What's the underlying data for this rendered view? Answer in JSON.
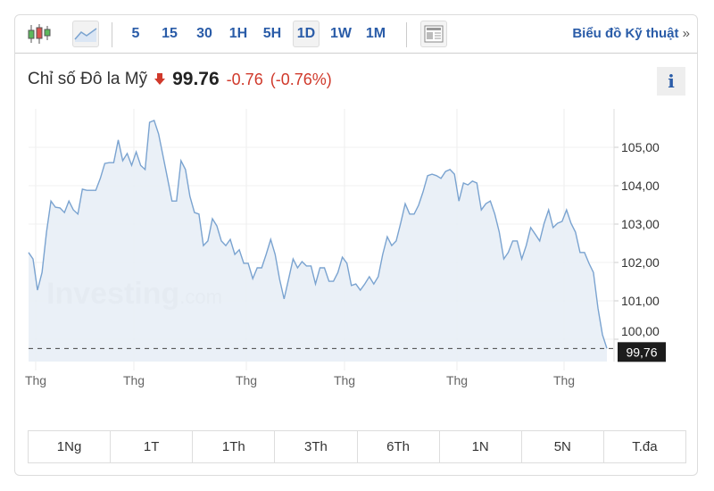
{
  "toolbar": {
    "icons": [
      "candlestick-chart-icon",
      "area-chart-icon",
      "layout-icon"
    ],
    "intervals": [
      "5",
      "15",
      "30",
      "1H",
      "5H",
      "1D",
      "1W",
      "1M"
    ],
    "active_interval": "1D",
    "tech_link": "Biểu đồ Kỹ thuật",
    "tech_link_arrow": "»"
  },
  "header": {
    "name": "Chỉ số Đô la Mỹ",
    "price": "99.76",
    "change": "-0.76",
    "change_pct": "(-0.76%)",
    "info_label": "i",
    "down_color": "#d0392b"
  },
  "watermark": {
    "brand": "Investing",
    "suffix": ".com"
  },
  "chart_data": {
    "type": "area",
    "ylim": [
      99.6,
      105.9
    ],
    "yticks": [
      "105,00",
      "104,00",
      "103,00",
      "102,00",
      "101,00",
      "100,00"
    ],
    "ytick_values": [
      105,
      104,
      103,
      102,
      101,
      100
    ],
    "xticks": [
      "Thg",
      "Thg",
      "Thg",
      "Thg",
      "Thg",
      "Thg"
    ],
    "last_value_label": "99,76",
    "last_value": 99.76,
    "line_color": "#7aa3d0",
    "fill_color": "#e8eef6",
    "grid": true,
    "values": [
      102.26,
      102.09,
      101.28,
      101.74,
      102.79,
      103.6,
      103.44,
      103.42,
      103.3,
      103.6,
      103.37,
      103.26,
      103.91,
      103.88,
      103.88,
      103.88,
      104.19,
      104.58,
      104.6,
      104.6,
      105.19,
      104.65,
      104.84,
      104.53,
      104.88,
      104.53,
      104.42,
      105.65,
      105.7,
      105.35,
      104.77,
      104.19,
      103.6,
      103.6,
      104.65,
      104.42,
      103.72,
      103.3,
      103.26,
      102.44,
      102.56,
      103.14,
      102.95,
      102.56,
      102.44,
      102.6,
      102.21,
      102.33,
      101.98,
      101.98,
      101.58,
      101.86,
      101.86,
      102.21,
      102.6,
      102.21,
      101.56,
      101.05,
      101.56,
      102.09,
      101.86,
      102.02,
      101.91,
      101.91,
      101.44,
      101.86,
      101.86,
      101.51,
      101.51,
      101.74,
      102.14,
      101.98,
      101.4,
      101.44,
      101.28,
      101.44,
      101.63,
      101.44,
      101.63,
      102.21,
      102.67,
      102.44,
      102.56,
      103.02,
      103.53,
      103.26,
      103.26,
      103.49,
      103.84,
      104.26,
      104.3,
      104.26,
      104.19,
      104.37,
      104.42,
      104.3,
      103.6,
      104.07,
      104.02,
      104.12,
      104.07,
      103.37,
      103.53,
      103.6,
      103.26,
      102.79,
      102.09,
      102.26,
      102.56,
      102.56,
      102.09,
      102.44,
      102.91,
      102.74,
      102.56,
      103.02,
      103.37,
      102.91,
      103.02,
      103.07,
      103.37,
      103.02,
      102.79,
      102.26,
      102.26,
      101.98,
      101.74,
      100.81,
      100.12,
      99.76
    ]
  },
  "ranges": [
    "1Ng",
    "1T",
    "1Th",
    "3Th",
    "6Th",
    "1N",
    "5N",
    "T.đa"
  ]
}
